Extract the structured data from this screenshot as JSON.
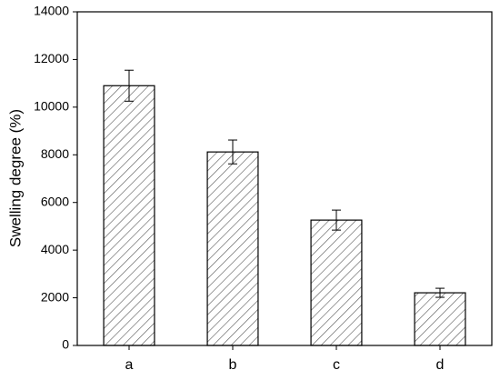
{
  "chart_data": {
    "type": "bar",
    "ylabel": "Swelling degree (%)",
    "categories": [
      "a",
      "b",
      "c",
      "d"
    ],
    "values": [
      10900,
      8120,
      5260,
      2210
    ],
    "errors": [
      650,
      500,
      420,
      190
    ],
    "color": "#000000",
    "hatch": true,
    "ylim": [
      0,
      14000
    ],
    "yticks": [
      0,
      2000,
      4000,
      6000,
      8000,
      10000,
      12000,
      14000
    ],
    "grid": false
  }
}
